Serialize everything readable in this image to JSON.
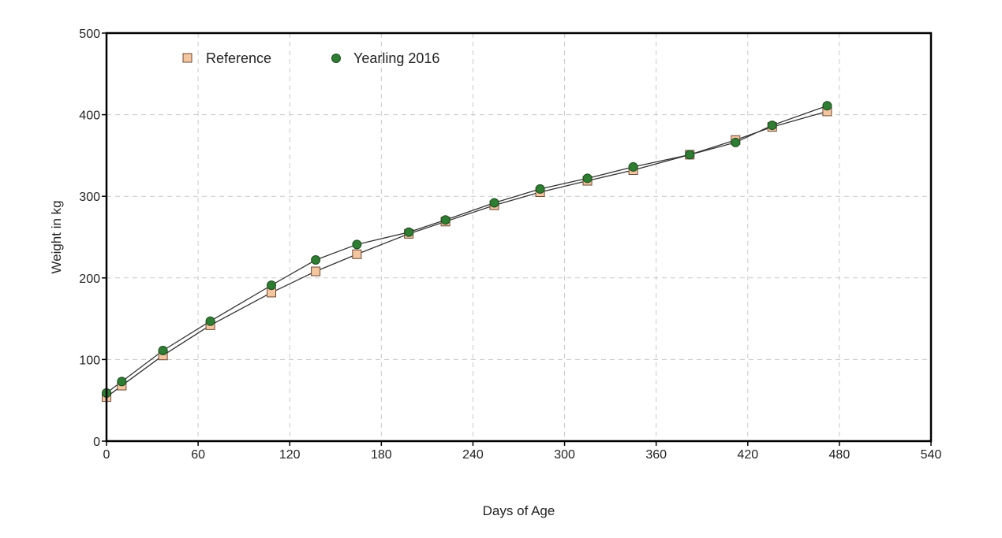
{
  "chart_data": {
    "type": "line",
    "xlabel": "Days of Age",
    "ylabel": "Weight in kg",
    "xlim": [
      0,
      540
    ],
    "ylim": [
      0,
      500
    ],
    "xticks": [
      0,
      60,
      120,
      180,
      240,
      300,
      360,
      420,
      480,
      540
    ],
    "yticks": [
      0,
      100,
      200,
      300,
      400,
      500
    ],
    "grid": true,
    "legend_position": "top-left",
    "series": [
      {
        "name": "Reference",
        "marker": "square",
        "color": "#f4c6a0",
        "points": [
          [
            0,
            54
          ],
          [
            10,
            68
          ],
          [
            37,
            105
          ],
          [
            68,
            142
          ],
          [
            108,
            182
          ],
          [
            137,
            208
          ],
          [
            164,
            229
          ],
          [
            198,
            254
          ],
          [
            222,
            269
          ],
          [
            254,
            289
          ],
          [
            284,
            305
          ],
          [
            315,
            319
          ],
          [
            345,
            332
          ],
          [
            382,
            351
          ],
          [
            412,
            369
          ],
          [
            436,
            385
          ],
          [
            472,
            404
          ]
        ]
      },
      {
        "name": "Yearling 2016",
        "marker": "circle",
        "color": "#2e7d32",
        "points": [
          [
            0,
            59
          ],
          [
            10,
            73
          ],
          [
            37,
            111
          ],
          [
            68,
            147
          ],
          [
            108,
            191
          ],
          [
            137,
            222
          ],
          [
            164,
            241
          ],
          [
            198,
            256
          ],
          [
            222,
            271
          ],
          [
            254,
            292
          ],
          [
            284,
            309
          ],
          [
            315,
            322
          ],
          [
            345,
            336
          ],
          [
            382,
            351
          ],
          [
            412,
            366
          ],
          [
            436,
            387
          ],
          [
            472,
            411
          ]
        ]
      }
    ]
  }
}
